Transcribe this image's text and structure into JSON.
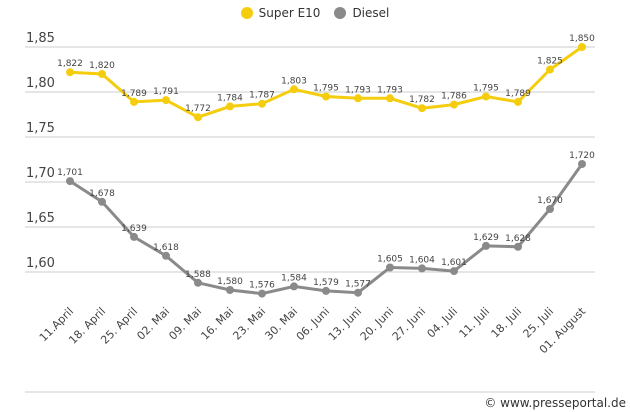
{
  "chart_data": {
    "type": "line",
    "categories": [
      "11.April",
      "18. April",
      "25. April",
      "02. Mai",
      "09. Mai",
      "16. Mai",
      "23. Mai",
      "30. Mai",
      "06. Juni",
      "13. Juni",
      "20. Juni",
      "27. Juni",
      "04. Juli",
      "11. Juli",
      "18. Juli",
      "25. Juli",
      "01. August"
    ],
    "series": [
      {
        "name": "Super E10",
        "color": "#f5cd0f",
        "values": [
          1.822,
          1.82,
          1.789,
          1.791,
          1.772,
          1.784,
          1.787,
          1.803,
          1.795,
          1.793,
          1.793,
          1.782,
          1.786,
          1.795,
          1.789,
          1.825,
          1.85
        ],
        "labels": [
          "1,822",
          "1,820",
          "1,789",
          "1,791",
          "1,772",
          "1,784",
          "1,787",
          "1,803",
          "1,795",
          "1,793",
          "1,793",
          "1,782",
          "1,786",
          "1,795",
          "1,789",
          "1,825",
          "1,850"
        ]
      },
      {
        "name": "Diesel",
        "color": "#8a8a8a",
        "values": [
          1.701,
          1.678,
          1.639,
          1.618,
          1.588,
          1.58,
          1.576,
          1.584,
          1.579,
          1.577,
          1.605,
          1.604,
          1.601,
          1.629,
          1.628,
          1.67,
          1.72
        ],
        "labels": [
          "1,701",
          "1,678",
          "1,639",
          "1,618",
          "1,588",
          "1,580",
          "1,576",
          "1,584",
          "1,579",
          "1,577",
          "1,605",
          "1,604",
          "1,601",
          "1,629",
          "1,628",
          "1,670",
          "1,720"
        ]
      }
    ],
    "yticks": [
      1.85,
      1.8,
      1.75,
      1.7,
      1.65,
      1.6
    ],
    "ytick_labels": [
      "1,85",
      "1,80",
      "1,75",
      "1,70",
      "1,65",
      "1,60"
    ],
    "ylim": [
      1.55,
      1.85
    ],
    "grid": true,
    "legend": "top-center"
  },
  "watermark": "© www.presseportal.de"
}
